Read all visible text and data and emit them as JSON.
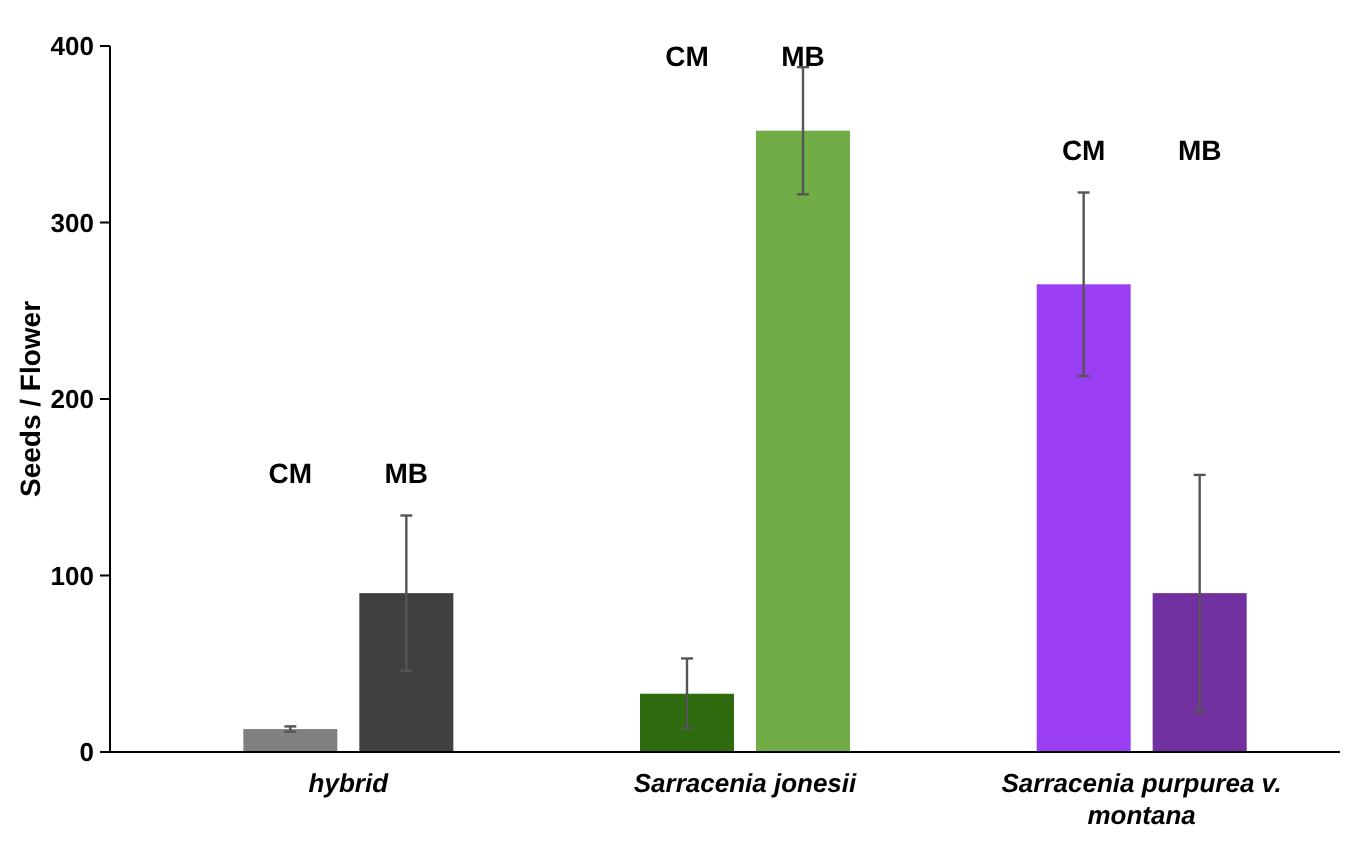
{
  "chart_data": {
    "type": "bar",
    "ylabel": "Seeds / Flower",
    "categories": [
      "hybrid",
      "Sarracenia jonesii",
      "Sarracenia purpurea v. montana"
    ],
    "series": [
      {
        "name": "CM",
        "colors": [
          "#808080",
          "#2e6b0e",
          "#9b3ff5"
        ],
        "values": [
          13,
          33,
          265
        ],
        "errors": [
          1.5,
          20,
          52
        ]
      },
      {
        "name": "MB",
        "colors": [
          "#404040",
          "#70ad47",
          "#7030a0"
        ],
        "values": [
          90,
          352,
          90
        ],
        "errors": [
          44,
          36,
          67
        ]
      }
    ],
    "ylim": [
      0,
      400
    ],
    "yticks": [
      0,
      100,
      200,
      300,
      400
    ],
    "grid": false
  }
}
